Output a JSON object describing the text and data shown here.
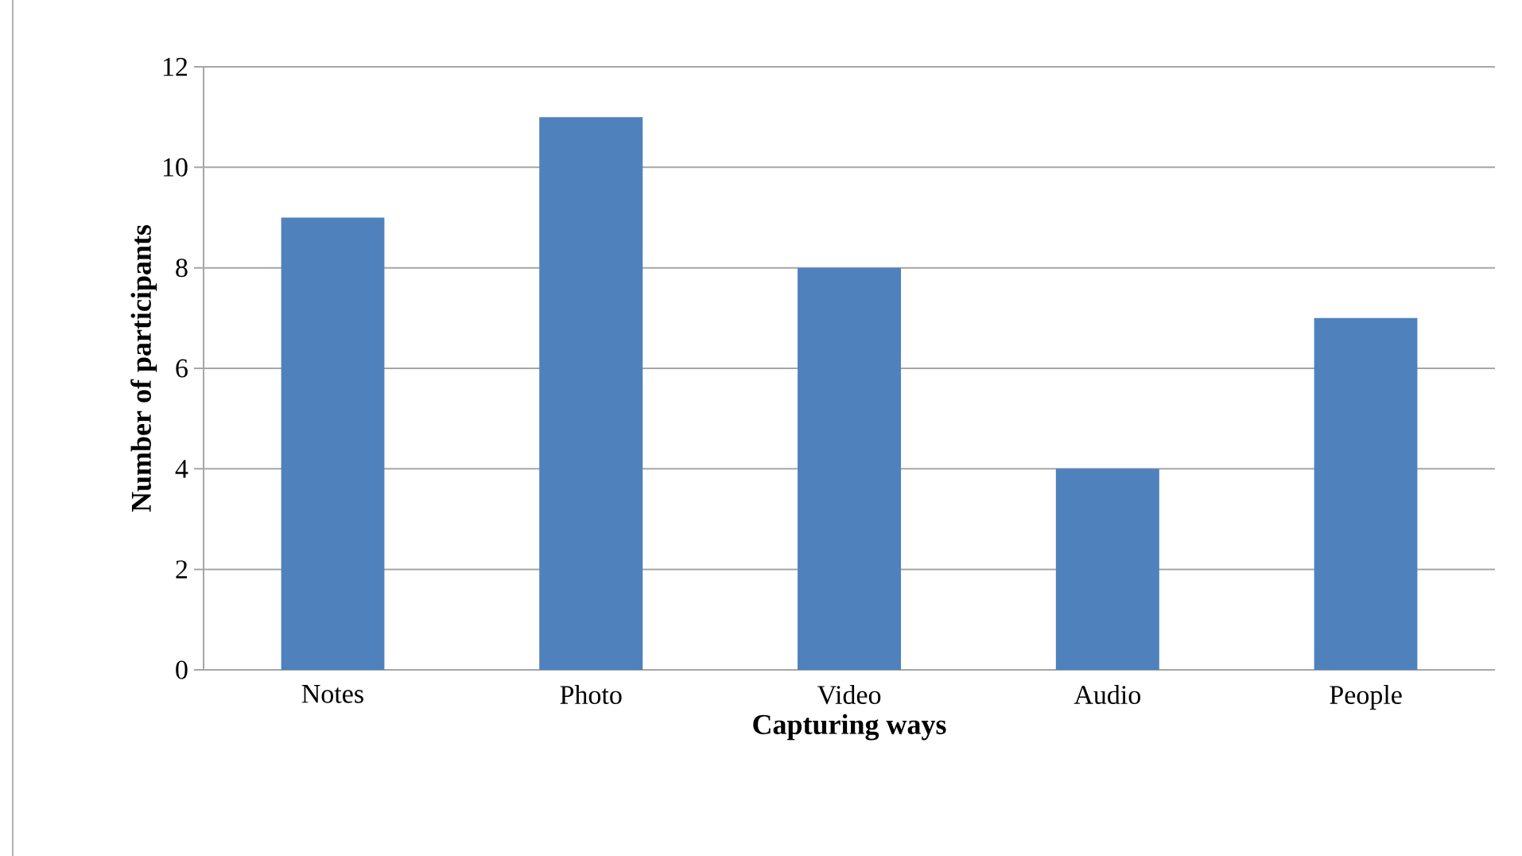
{
  "chart_data": {
    "type": "bar",
    "xlabel": "Capturing ways",
    "ylabel": "Number of participants",
    "categories": [
      "Notes",
      "Photo",
      "Video",
      "Audio",
      "People"
    ],
    "values": [
      9,
      11,
      8,
      4,
      7
    ],
    "color": "#4f81bd",
    "ylim": [
      0,
      12
    ],
    "yticks": [
      0,
      2,
      4,
      6,
      8,
      10,
      12
    ],
    "grid": "y"
  }
}
